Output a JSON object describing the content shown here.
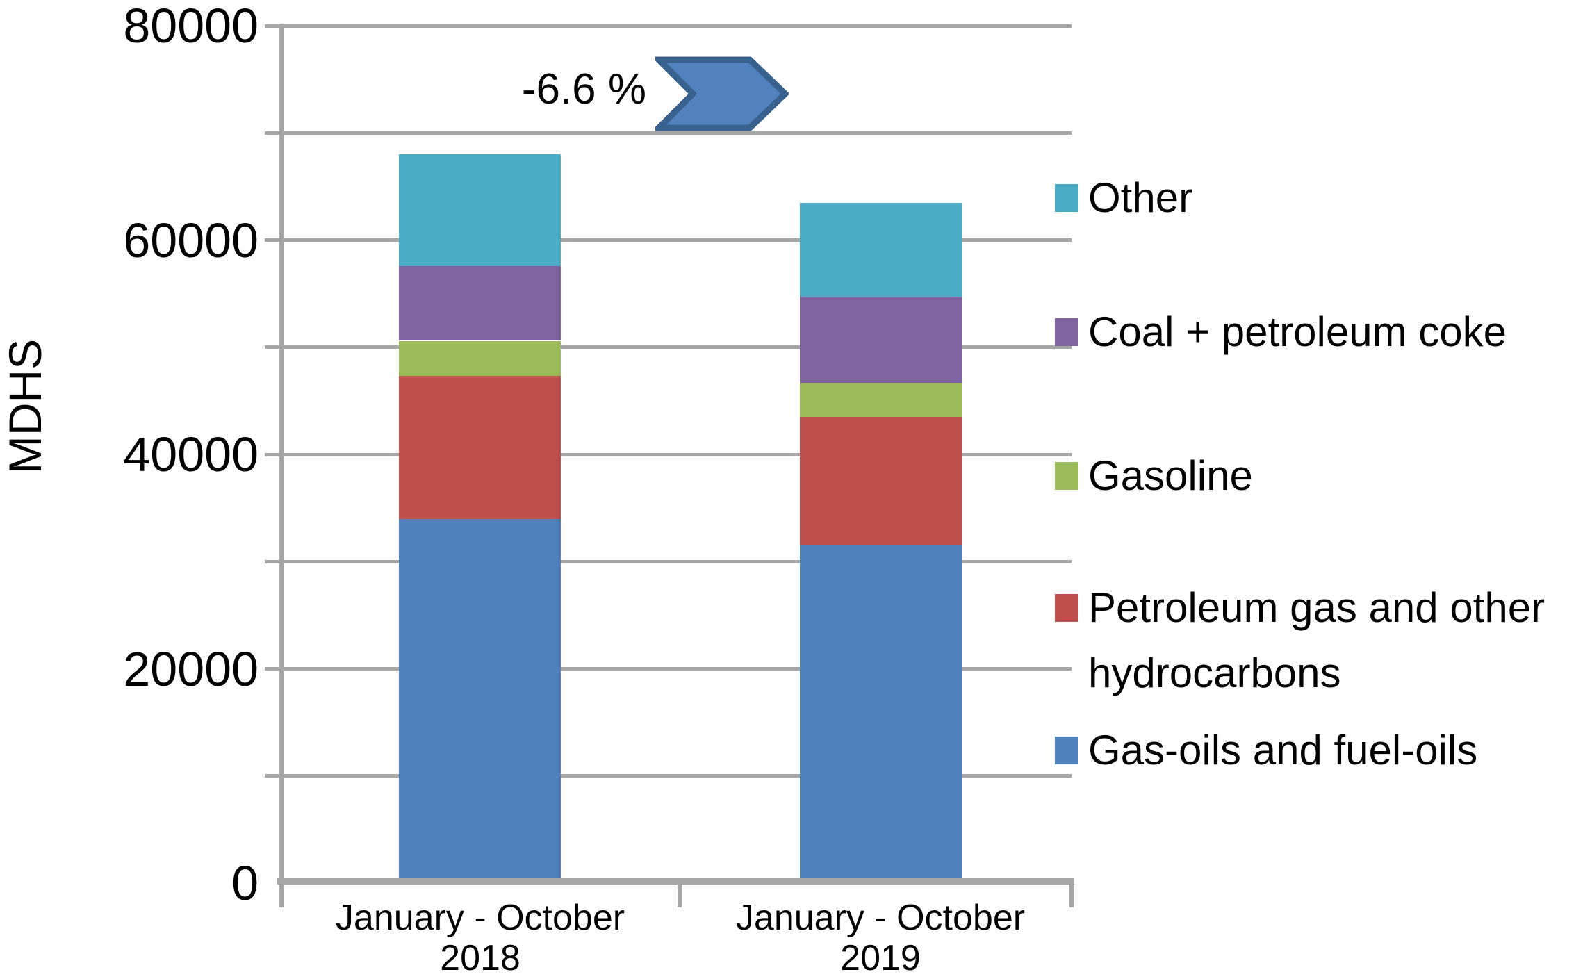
{
  "chart_data": {
    "type": "bar",
    "stacked": true,
    "title": "",
    "xlabel": "",
    "ylabel": "MDHS",
    "ylim": [
      0,
      80000
    ],
    "gridline_step": 10000,
    "grid": true,
    "yticks": [
      {
        "value": 0,
        "label": "0"
      },
      {
        "value": 20000,
        "label": "20000"
      },
      {
        "value": 40000,
        "label": "40000"
      },
      {
        "value": 60000,
        "label": "60000"
      },
      {
        "value": 80000,
        "label": "80000"
      }
    ],
    "categories": [
      {
        "line1": "January - October",
        "line2": "2018"
      },
      {
        "line1": "January - October",
        "line2": "2019"
      }
    ],
    "series": [
      {
        "name": "Gas-oils and fuel-oils",
        "color": "#4F81BD",
        "values": [
          34000,
          31600
        ]
      },
      {
        "name": "Petroleum gas and other hydrocarbons",
        "color": "#C0504D",
        "values": [
          13300,
          11900
        ]
      },
      {
        "name": "Gasoline",
        "color": "#9BBB59",
        "values": [
          3300,
          3200
        ]
      },
      {
        "name": "Coal + petroleum coke",
        "color": "#8064A2",
        "values": [
          7000,
          8000
        ]
      },
      {
        "name": "Other",
        "color": "#4BACC6",
        "values": [
          10400,
          8800
        ]
      }
    ],
    "totals": [
      68000,
      63500
    ],
    "annotation": {
      "text": "-6.6 %",
      "shape": "chevron-arrow",
      "fill": "#5182BE",
      "border": "#38618E"
    },
    "legend_position": "right",
    "legend": [
      {
        "label": "Other",
        "color": "#4BACC6"
      },
      {
        "label": "Coal + petroleum coke",
        "color": "#8064A2"
      },
      {
        "label": "Gasoline",
        "color": "#9BBB59"
      },
      {
        "label": "Petroleum gas and other hydrocarbons",
        "color": "#C0504D"
      },
      {
        "label": "Gas-oils and fuel-oils",
        "color": "#4F81BD"
      }
    ]
  },
  "colors": {
    "background": "#FFFFFF",
    "axis": "#A6A6A6",
    "gridline": "#A6A6A6",
    "text": "#000000"
  }
}
